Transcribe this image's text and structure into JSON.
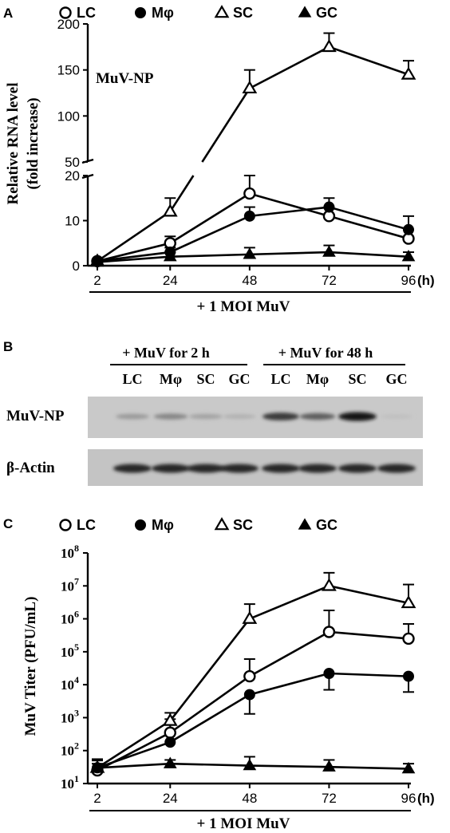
{
  "chart_data": [
    {
      "panel": "A",
      "type": "line",
      "annotation": "MuV-NP",
      "ylabel_line1": "Relative RNA level",
      "ylabel_line2": "(fold increase)",
      "x_tick_labels": [
        "2",
        "24",
        "48",
        "72",
        "96"
      ],
      "x_unit": "(h)",
      "xlabel": "+ 1 MOI MuV",
      "x": [
        2,
        24,
        48,
        72,
        96
      ],
      "y_axis_break": true,
      "y_lower_range": [
        0,
        20
      ],
      "y_upper_range": [
        50,
        200
      ],
      "y_lower_ticks": [
        "0",
        "10",
        "20"
      ],
      "y_upper_ticks": [
        "50",
        "100",
        "150",
        "200"
      ],
      "legend": {
        "placement": "top",
        "entries": [
          "LC",
          "Mφ",
          "SC",
          "GC"
        ]
      },
      "series": [
        {
          "name": "LC",
          "marker": "open-circle",
          "values": [
            1,
            5,
            16,
            11,
            6
          ],
          "errors": [
            0.3,
            1.5,
            4,
            2,
            2
          ]
        },
        {
          "name": "Mφ",
          "marker": "filled-circle",
          "values": [
            1,
            3,
            11,
            13,
            8
          ],
          "errors": [
            0.3,
            1,
            2,
            2,
            3
          ]
        },
        {
          "name": "SC",
          "marker": "open-triangle",
          "values": [
            1,
            12,
            130,
            175,
            145
          ],
          "errors": [
            0.3,
            3,
            20,
            15,
            15
          ]
        },
        {
          "name": "GC",
          "marker": "filled-triangle",
          "values": [
            0.8,
            2,
            2.5,
            3,
            2
          ],
          "errors": [
            0.3,
            1,
            1.5,
            1.5,
            1
          ]
        }
      ]
    },
    {
      "panel": "B",
      "type": "blot",
      "groups": [
        {
          "label": "+ MuV for 2 h",
          "lanes": [
            "LC",
            "Mφ",
            "SC",
            "GC"
          ]
        },
        {
          "label": "+ MuV for 48 h",
          "lanes": [
            "LC",
            "Mφ",
            "SC",
            "GC"
          ]
        }
      ],
      "rows": [
        {
          "label": "MuV-NP",
          "intensity": [
            0.25,
            0.35,
            0.2,
            0.12,
            0.75,
            0.55,
            0.95,
            0.05
          ]
        },
        {
          "label": "β-Actin",
          "intensity": [
            0.85,
            0.85,
            0.85,
            0.85,
            0.85,
            0.85,
            0.85,
            0.85
          ]
        }
      ]
    },
    {
      "panel": "C",
      "type": "line",
      "ylabel": "MuV Titer (PFU/mL)",
      "y_scale": "log",
      "y_tick_exponents": [
        "1",
        "2",
        "3",
        "4",
        "5",
        "6",
        "7",
        "8"
      ],
      "y_tick_base": "10",
      "ylim": [
        10,
        100000000
      ],
      "x_tick_labels": [
        "2",
        "24",
        "48",
        "72",
        "96"
      ],
      "x_unit": "(h)",
      "xlabel": "+ 1 MOI MuV",
      "x": [
        2,
        24,
        48,
        72,
        96
      ],
      "legend": {
        "placement": "top",
        "entries": [
          "LC",
          "Mφ",
          "SC",
          "GC"
        ]
      },
      "series": [
        {
          "name": "LC",
          "marker": "open-circle",
          "values": [
            25,
            350,
            18000,
            400000,
            250000
          ],
          "error_upper": [
            40,
            900,
            60000,
            1800000,
            700000
          ],
          "error_lower": [
            null,
            null,
            null,
            null,
            null
          ]
        },
        {
          "name": "Mφ",
          "marker": "filled-circle",
          "values": [
            30,
            180,
            5000,
            22000,
            18000
          ],
          "error_upper": [
            null,
            null,
            null,
            null,
            null
          ],
          "error_lower": [
            null,
            null,
            1300,
            7000,
            6000
          ]
        },
        {
          "name": "SC",
          "marker": "open-triangle",
          "values": [
            30,
            800,
            1000000,
            10000000,
            3000000
          ],
          "error_upper": [
            50,
            1400,
            2800000,
            25000000,
            11000000
          ],
          "error_lower": [
            null,
            null,
            null,
            null,
            null
          ]
        },
        {
          "name": "GC",
          "marker": "filled-triangle",
          "values": [
            30,
            40,
            35,
            32,
            28
          ],
          "error_upper": [
            55,
            52,
            65,
            52,
            40
          ],
          "error_lower": [
            null,
            null,
            null,
            null,
            null
          ]
        }
      ]
    }
  ],
  "panel_letters": [
    "A",
    "B",
    "C"
  ]
}
